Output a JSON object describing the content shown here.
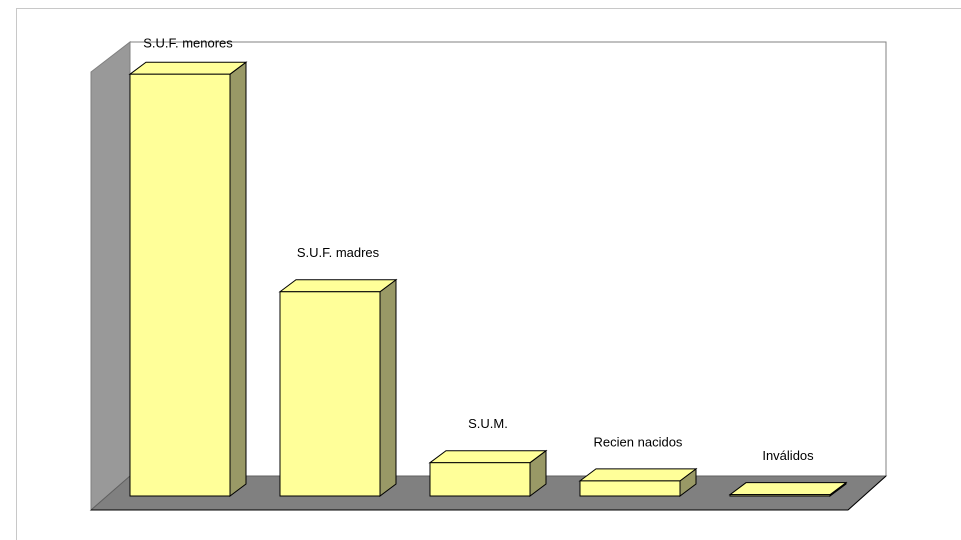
{
  "chart_data": {
    "type": "bar3d",
    "categories": [
      "S.U.F. menores",
      "S.U.F. madres",
      "S.U.M.",
      "Recien nacidos",
      "Inválidos"
    ],
    "values": [
      95,
      46,
      7.5,
      3.4,
      0.3
    ],
    "ylim": [
      0,
      100
    ],
    "color": "#ffff99",
    "side_color": "#999966"
  }
}
